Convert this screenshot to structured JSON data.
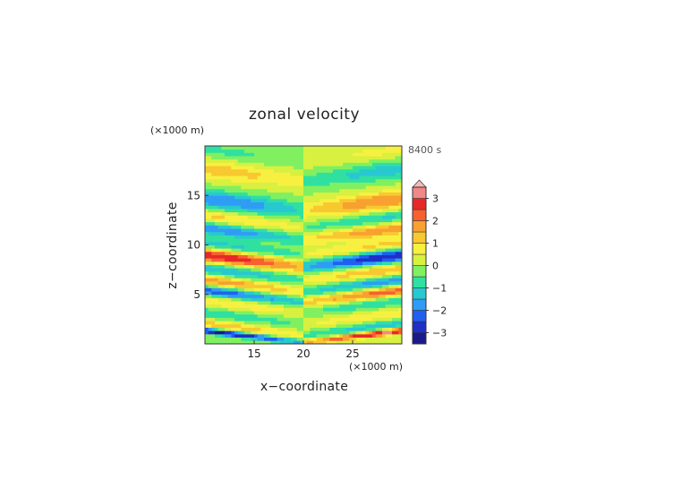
{
  "chart_data": {
    "type": "heatmap",
    "title": "zonal velocity",
    "time_label": "8400 s",
    "xlabel": "x−coordinate",
    "ylabel": "z−coordinate",
    "x_unit": "(×1000 m)",
    "y_unit": "(×1000 m)",
    "xlim": [
      10,
      30
    ],
    "ylim": [
      0,
      20
    ],
    "x_ticks": [
      15,
      20,
      25
    ],
    "y_ticks": [
      5,
      10,
      15
    ],
    "colorbar": {
      "ticks": [
        3,
        2,
        1,
        0,
        -1,
        -2,
        -3
      ],
      "range": [
        -3.5,
        3.5
      ],
      "levels": [
        -3.5,
        -3,
        -2.5,
        -2,
        -1.5,
        -1,
        -0.5,
        0,
        0.5,
        1,
        1.5,
        2,
        2.5,
        3,
        3.5
      ],
      "colors": [
        "#1a1a8a",
        "#1f2fc8",
        "#2060f0",
        "#2f9cf5",
        "#28c8d0",
        "#30e0a0",
        "#80f060",
        "#d8f040",
        "#f8f040",
        "#f8c830",
        "#f8a030",
        "#f86030",
        "#e82828",
        "#f08888",
        "#f8b8b8"
      ]
    },
    "bands": [
      {
        "z": 0.15,
        "amp": -3.2,
        "w": 0.3
      },
      {
        "z": 0.9,
        "amp": 1.3,
        "w": 0.45
      },
      {
        "z": 2.0,
        "amp": -0.9,
        "w": 0.55
      },
      {
        "z": 3.2,
        "amp": 0.9,
        "w": 0.6
      },
      {
        "z": 4.2,
        "amp": -2.3,
        "w": 0.5
      },
      {
        "z": 5.3,
        "amp": 1.8,
        "w": 0.5
      },
      {
        "z": 6.5,
        "amp": -1.5,
        "w": 0.6
      },
      {
        "z": 7.8,
        "amp": 3.0,
        "w": 0.7
      },
      {
        "z": 9.0,
        "amp": -1.2,
        "w": 0.6
      },
      {
        "z": 10.5,
        "amp": -1.9,
        "w": 0.6
      },
      {
        "z": 11.8,
        "amp": 1.1,
        "w": 0.55
      },
      {
        "z": 13.5,
        "amp": -2.0,
        "w": 0.9
      },
      {
        "z": 16.5,
        "amp": 1.3,
        "w": 0.9
      },
      {
        "z": 18.5,
        "amp": -0.6,
        "w": 0.8
      }
    ]
  }
}
